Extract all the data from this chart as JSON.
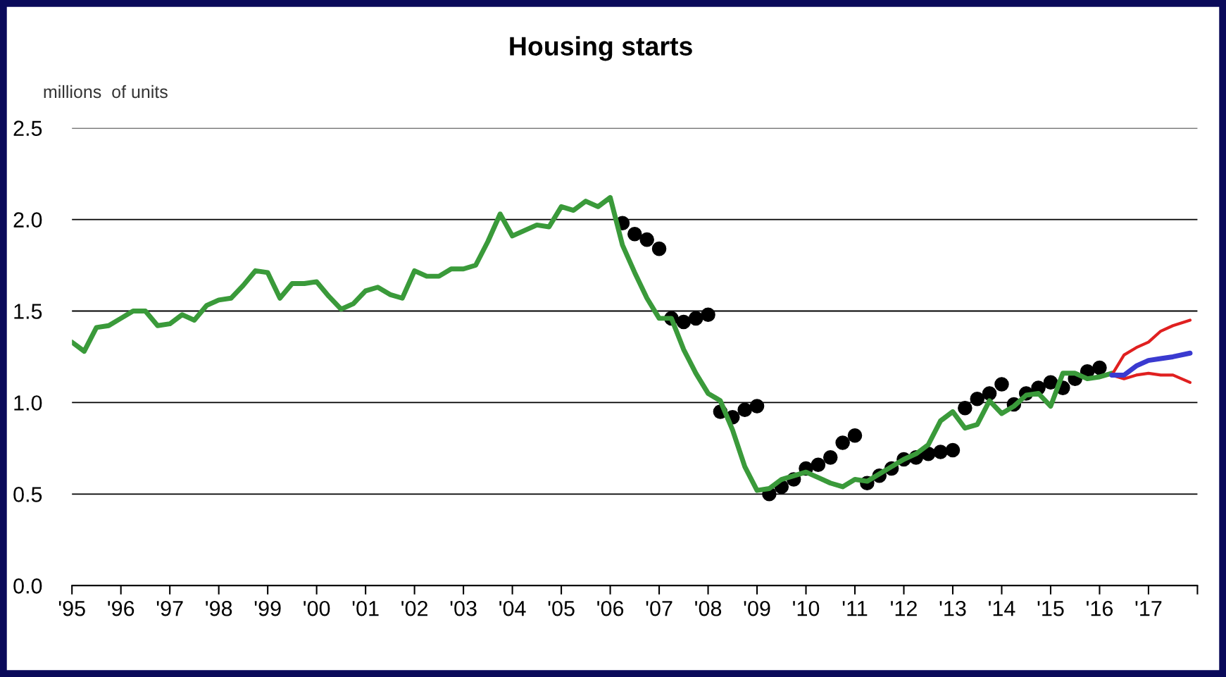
{
  "chart_data": {
    "type": "line",
    "title": "Housing starts",
    "ylabel": "millions  of units",
    "xlim": [
      1995,
      2018
    ],
    "xticks": [
      {
        "value": 1995,
        "label": "'95"
      },
      {
        "value": 1996,
        "label": "'96"
      },
      {
        "value": 1997,
        "label": "'97"
      },
      {
        "value": 1998,
        "label": "'98"
      },
      {
        "value": 1999,
        "label": "'99"
      },
      {
        "value": 2000,
        "label": "'00"
      },
      {
        "value": 2001,
        "label": "'01"
      },
      {
        "value": 2002,
        "label": "'02"
      },
      {
        "value": 2003,
        "label": "'03"
      },
      {
        "value": 2004,
        "label": "'04"
      },
      {
        "value": 2005,
        "label": "'05"
      },
      {
        "value": 2006,
        "label": "'06"
      },
      {
        "value": 2007,
        "label": "'07"
      },
      {
        "value": 2008,
        "label": "'08"
      },
      {
        "value": 2009,
        "label": "'09"
      },
      {
        "value": 2010,
        "label": "'10"
      },
      {
        "value": 2011,
        "label": "'11"
      },
      {
        "value": 2012,
        "label": "'12"
      },
      {
        "value": 2013,
        "label": "'13"
      },
      {
        "value": 2014,
        "label": "'14"
      },
      {
        "value": 2015,
        "label": "'15"
      },
      {
        "value": 2016,
        "label": "'16"
      },
      {
        "value": 2017,
        "label": "'17"
      },
      {
        "value": 2018,
        "label": null
      }
    ],
    "ylim": [
      0,
      2.5
    ],
    "yticks": [
      {
        "value": 0,
        "label": "0.0"
      },
      {
        "value": 0.5,
        "label": "0.5"
      },
      {
        "value": 1,
        "label": "1.0"
      },
      {
        "value": 1.5,
        "label": "1.5"
      },
      {
        "value": 2,
        "label": "2.0"
      },
      {
        "value": 2.5,
        "label": "2.5"
      }
    ],
    "grid": "y",
    "series": [
      {
        "type": "line",
        "color": "#3a9a3a",
        "x": [
          1995.0,
          1995.25,
          1995.5,
          1995.75,
          1996.0,
          1996.25,
          1996.5,
          1996.75,
          1997.0,
          1997.25,
          1997.5,
          1997.75,
          1998.0,
          1998.25,
          1998.5,
          1998.75,
          1999.0,
          1999.25,
          1999.5,
          1999.75,
          2000.0,
          2000.25,
          2000.5,
          2000.75,
          2001.0,
          2001.25,
          2001.5,
          2001.75,
          2002.0,
          2002.25,
          2002.5,
          2002.75,
          2003.0,
          2003.25,
          2003.5,
          2003.75,
          2004.0,
          2004.25,
          2004.5,
          2004.75,
          2005.0,
          2005.25,
          2005.5,
          2005.75,
          2006.0,
          2006.25,
          2006.5,
          2006.75,
          2007.0,
          2007.25,
          2007.5,
          2007.75,
          2008.0,
          2008.25,
          2008.5,
          2008.75,
          2009.0,
          2009.25,
          2009.5,
          2009.75,
          2010.0,
          2010.25,
          2010.5,
          2010.75,
          2011.0,
          2011.25,
          2011.5,
          2011.75,
          2012.0,
          2012.25,
          2012.5,
          2012.75,
          2013.0,
          2013.25,
          2013.5,
          2013.75,
          2014.0,
          2014.25,
          2014.5,
          2014.75,
          2015.0,
          2015.25,
          2015.5,
          2015.75,
          2016.0,
          2016.25
        ],
        "values": [
          1.33,
          1.28,
          1.41,
          1.42,
          1.46,
          1.5,
          1.5,
          1.42,
          1.43,
          1.48,
          1.45,
          1.53,
          1.56,
          1.57,
          1.64,
          1.72,
          1.71,
          1.57,
          1.65,
          1.65,
          1.66,
          1.58,
          1.51,
          1.54,
          1.61,
          1.63,
          1.59,
          1.57,
          1.72,
          1.69,
          1.69,
          1.73,
          1.73,
          1.75,
          1.88,
          2.03,
          1.91,
          1.94,
          1.97,
          1.96,
          2.07,
          2.05,
          2.1,
          2.07,
          2.12,
          1.86,
          1.71,
          1.57,
          1.46,
          1.46,
          1.29,
          1.16,
          1.05,
          1.01,
          0.85,
          0.65,
          0.52,
          0.53,
          0.58,
          0.6,
          0.62,
          0.59,
          0.56,
          0.54,
          0.58,
          0.57,
          0.61,
          0.65,
          0.69,
          0.72,
          0.77,
          0.9,
          0.95,
          0.86,
          0.88,
          1.01,
          0.94,
          0.98,
          1.04,
          1.05,
          0.98,
          1.16,
          1.16,
          1.13,
          1.14,
          1.16
        ]
      },
      {
        "type": "scatter",
        "color": "#000000",
        "marker": "circle",
        "x": [
          2006.25,
          2006.5,
          2006.75,
          2007.0,
          2007.25,
          2007.5,
          2007.75,
          2008.0,
          2008.25,
          2008.5,
          2008.75,
          2009.0,
          2009.25,
          2009.5,
          2009.75,
          2010.0,
          2010.25,
          2010.5,
          2010.75,
          2011.0,
          2011.25,
          2011.5,
          2011.75,
          2012.0,
          2012.25,
          2012.5,
          2012.75,
          2013.0,
          2013.25,
          2013.5,
          2013.75,
          2014.0,
          2014.25,
          2014.5,
          2014.75,
          2015.0,
          2015.25,
          2015.5,
          2015.75,
          2016.0
        ],
        "values": [
          1.98,
          1.92,
          1.89,
          1.84,
          1.46,
          1.44,
          1.46,
          1.48,
          0.95,
          0.92,
          0.96,
          0.98,
          0.5,
          0.54,
          0.58,
          0.64,
          0.66,
          0.7,
          0.78,
          0.82,
          0.56,
          0.6,
          0.64,
          0.69,
          0.7,
          0.72,
          0.73,
          0.74,
          0.97,
          1.02,
          1.05,
          1.1,
          0.99,
          1.05,
          1.08,
          1.11,
          1.08,
          1.13,
          1.17,
          1.19
        ]
      },
      {
        "type": "line",
        "color": "#e02020",
        "x": [
          2016.25,
          2016.5,
          2016.75,
          2017.0,
          2017.25,
          2017.5,
          2017.85
        ],
        "values": [
          1.15,
          1.26,
          1.3,
          1.33,
          1.39,
          1.42,
          1.45
        ]
      },
      {
        "type": "line",
        "color": "#e02020",
        "x": [
          2016.25,
          2016.5,
          2016.75,
          2017.0,
          2017.25,
          2017.5,
          2017.85
        ],
        "values": [
          1.15,
          1.13,
          1.15,
          1.16,
          1.15,
          1.15,
          1.11
        ]
      },
      {
        "type": "line",
        "color": "#3a3ad0",
        "x": [
          2016.25,
          2016.5,
          2016.75,
          2017.0,
          2017.25,
          2017.5,
          2017.85
        ],
        "values": [
          1.15,
          1.15,
          1.2,
          1.23,
          1.24,
          1.25,
          1.27
        ]
      }
    ]
  }
}
